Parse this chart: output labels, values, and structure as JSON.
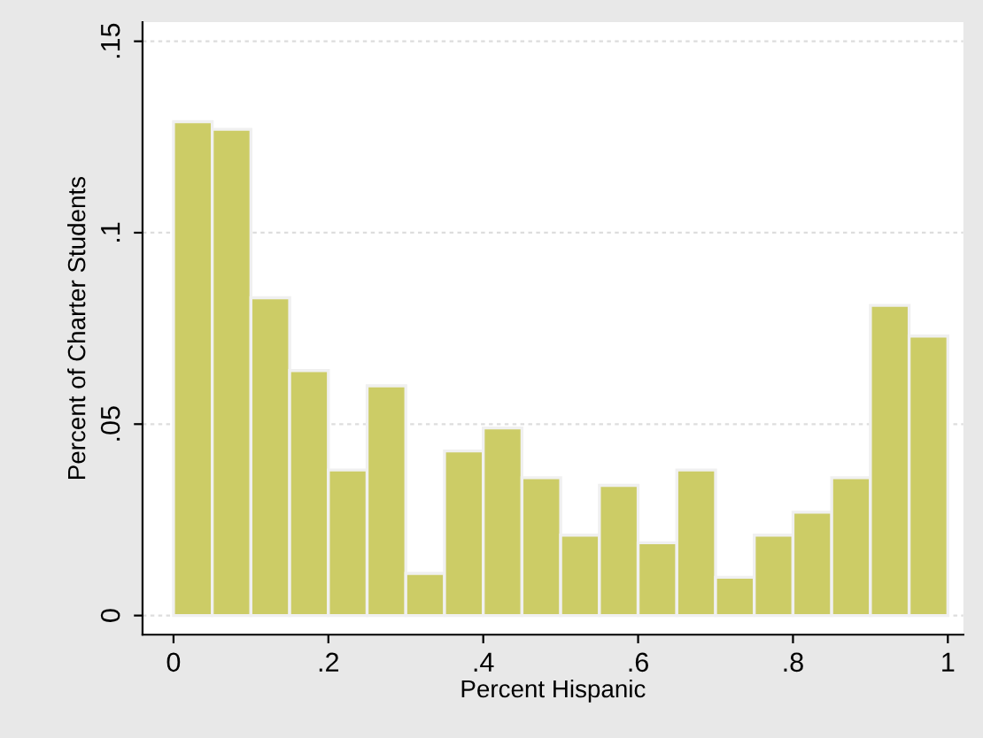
{
  "chart_data": {
    "type": "histogram",
    "xlabel": "Percent Hispanic",
    "ylabel": "Percent of Charter Students",
    "bins": [
      0,
      0.05,
      0.1,
      0.15,
      0.2,
      0.25,
      0.3,
      0.35,
      0.4,
      0.45,
      0.5,
      0.55,
      0.6,
      0.65,
      0.7,
      0.75,
      0.8,
      0.85,
      0.9,
      0.95,
      1
    ],
    "values": [
      0.129,
      0.127,
      0.083,
      0.064,
      0.038,
      0.06,
      0.011,
      0.043,
      0.049,
      0.036,
      0.021,
      0.034,
      0.019,
      0.038,
      0.01,
      0.021,
      0.027,
      0.036,
      0.081,
      0.073
    ],
    "color": "#cccc66",
    "xlim": [
      -0.04,
      1.02
    ],
    "ylim": [
      -0.005,
      0.155
    ],
    "xticks": [
      0,
      {
        "value": 0.2,
        "label": ".2"
      },
      {
        "value": 0.4,
        "label": ".4"
      },
      {
        "value": 0.6,
        "label": ".6"
      },
      {
        "value": 0.8,
        "label": ".8"
      },
      1
    ],
    "yticks": [
      0,
      {
        "value": 0.05,
        "label": ".05"
      },
      {
        "value": 0.1,
        "label": ".1"
      },
      {
        "value": 0.15,
        "label": ".15"
      }
    ],
    "grid": "y"
  }
}
